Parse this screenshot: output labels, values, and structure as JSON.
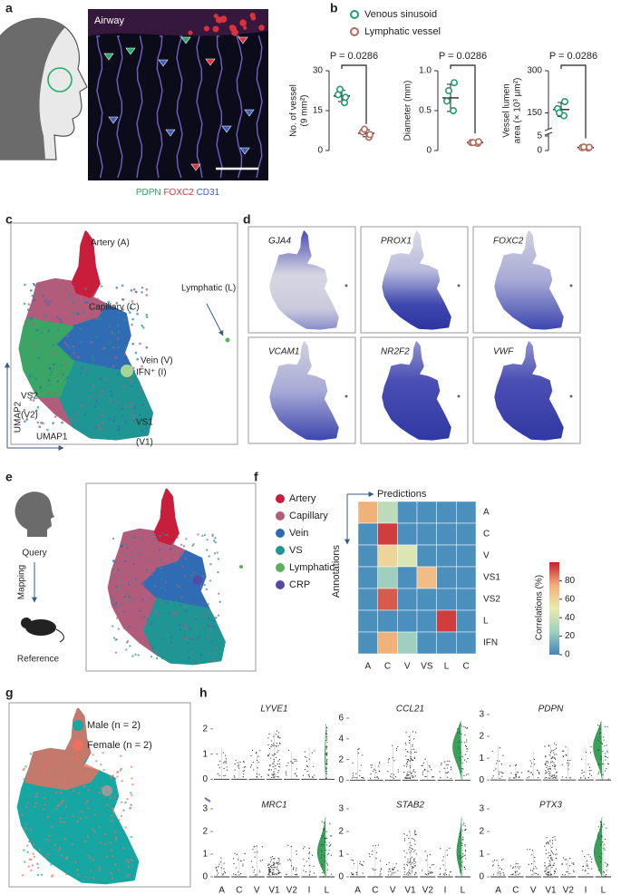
{
  "panels": {
    "a": {
      "letter": "a",
      "label": "Airway",
      "stains": [
        {
          "name": "PDPN",
          "color": "#23a35f"
        },
        {
          "name": "FOXC2",
          "color": "#e0303c"
        },
        {
          "name": "CD31",
          "color": "#3a5fc0"
        }
      ]
    },
    "b": {
      "letter": "b"
    },
    "c": {
      "letter": "c",
      "labels": [
        "Artery (A)",
        "Capillary (C)",
        "Lymphatic (L)",
        "Vein (V)",
        "IFN⁺ (I)",
        "VS2",
        "(V2)",
        "VS1",
        "(V1)"
      ],
      "x_label": "UMAP1",
      "y_label": "UMAP2"
    },
    "d": {
      "letter": "d",
      "genes": [
        "GJA4",
        "PROX1",
        "FOXC2",
        "VCAM1",
        "NR2F2",
        "VWF"
      ]
    },
    "e": {
      "letter": "e",
      "query": "Query",
      "mapping": "Mapping",
      "reference": "Reference",
      "legend": [
        {
          "name": "Artery",
          "color": "#c81e3c"
        },
        {
          "name": "Capillary",
          "color": "#b25c7c"
        },
        {
          "name": "Vein",
          "color": "#2f6cb4"
        },
        {
          "name": "VS",
          "color": "#1f9693"
        },
        {
          "name": "Lymphatic",
          "color": "#5fb05c"
        },
        {
          "name": "CRP",
          "color": "#5a48a6"
        }
      ]
    },
    "f": {
      "letter": "f"
    },
    "g": {
      "letter": "g",
      "legend": [
        {
          "name": "Male (n = 2)",
          "color": "#17a6a2"
        },
        {
          "name": "Female (n = 2)",
          "color": "#ee6f5e"
        }
      ]
    },
    "h": {
      "letter": "h"
    }
  },
  "chart_data": [
    {
      "type": "dot",
      "ylabel": [
        "No. of vessel",
        "(9 mm²)"
      ],
      "annotation": "P = 0.0286",
      "ylim": [
        0,
        30
      ],
      "yticks": [
        0,
        15,
        30
      ],
      "series": [
        {
          "name": "Venous sinusoid",
          "color": "#1f9e6d",
          "values": [
            21,
            18,
            23,
            20
          ],
          "mean": 20.5,
          "error": 2.1
        },
        {
          "name": "Lymphatic vessel",
          "color": "#b06a5e",
          "values": [
            7,
            5,
            8,
            6
          ],
          "mean": 6.5,
          "error": 1.3
        }
      ]
    },
    {
      "type": "dot",
      "ylabel": [
        "Diameter (mm)"
      ],
      "annotation": "P = 0.0286",
      "ylim": [
        0,
        1
      ],
      "yticks": [
        0,
        0.5,
        {
          "value": 1,
          "label": "1.0"
        }
      ],
      "series": [
        {
          "color": "#1f9e6d",
          "values": [
            0.62,
            0.5,
            0.75,
            0.85
          ],
          "mean": 0.66,
          "error": 0.17
        },
        {
          "color": "#b06a5e",
          "values": [
            0.1,
            0.09,
            0.1,
            0.11
          ],
          "mean": 0.1,
          "error": 0.01
        }
      ]
    },
    {
      "type": "dot",
      "ylabel": [
        "Vessel lumen",
        "area (× 10³ µm²)"
      ],
      "annotation": "P = 0.0286",
      "ylim": [
        0,
        300
      ],
      "axis_break": [
        5,
        100
      ],
      "yticks": [
        0,
        5,
        150,
        300
      ],
      "series": [
        {
          "color": "#1f9e6d",
          "values": [
            165,
            140,
            150,
            190
          ],
          "mean": 162,
          "error": 25
        },
        {
          "color": "#b06a5e",
          "values": [
            1,
            0.9,
            1.2,
            1.1
          ],
          "mean": 1.05,
          "error": 0.1
        }
      ]
    },
    {
      "type": "heatmap",
      "x_label": "Predictions",
      "y_label": "Annotations",
      "columns": [
        "A",
        "C",
        "V",
        "VS",
        "L",
        "C"
      ],
      "rows": [
        "A",
        "C",
        "V",
        "VS1",
        "VS2",
        "L",
        "IFN"
      ],
      "values": [
        [
          75,
          35,
          3,
          3,
          3,
          3
        ],
        [
          3,
          95,
          3,
          3,
          3,
          3
        ],
        [
          3,
          60,
          45,
          3,
          3,
          3
        ],
        [
          3,
          25,
          3,
          70,
          3,
          3
        ],
        [
          3,
          90,
          3,
          3,
          3,
          3
        ],
        [
          3,
          3,
          3,
          3,
          95,
          3
        ],
        [
          3,
          75,
          25,
          3,
          3,
          3
        ]
      ],
      "clim": [
        0,
        100
      ],
      "colorbar_ticks": [
        0,
        20,
        40,
        60,
        80
      ],
      "colorbar_label": "Correlations (%)",
      "colors": [
        "#3f86bd",
        "#9fd0bd",
        "#e9ebb0",
        "#f0b27a",
        "#c8202e"
      ]
    },
    {
      "type": "violin",
      "title": "LYVE1",
      "ylim": [
        -0.2,
        3
      ],
      "yticks": [
        0,
        1,
        2
      ],
      "color": "#3aa05a"
    },
    {
      "type": "violin",
      "title": "CCL21",
      "ylim": [
        -0.4,
        7.4
      ],
      "yticks": [
        0,
        2,
        4,
        6
      ],
      "color": "#3aa05a"
    },
    {
      "type": "violin",
      "title": "PDPN",
      "ylim": [
        -0.2,
        3.5
      ],
      "yticks": [
        0,
        1,
        2,
        3
      ],
      "color": "#3aa05a"
    },
    {
      "type": "violin",
      "title": "MRC1",
      "ylim": [
        -0.2,
        3.4
      ],
      "yticks": [
        0,
        1,
        2,
        3
      ],
      "color": "#3aa05a",
      "categories": [
        "A",
        "C",
        "V",
        "V1",
        "V2",
        "I",
        "L"
      ]
    },
    {
      "type": "violin",
      "title": "STAB2",
      "ylim": [
        -0.2,
        3.4
      ],
      "yticks": [
        0,
        1,
        2,
        3
      ],
      "color": "#3aa05a",
      "categories": [
        "A",
        "C",
        "V",
        "V1",
        "V2",
        "I",
        "L"
      ]
    },
    {
      "type": "violin",
      "title": "PTX3",
      "ylim": [
        -0.2,
        3.4
      ],
      "yticks": [
        0,
        1,
        2,
        3
      ],
      "color": "#3aa05a",
      "categories": [
        "A",
        "C",
        "V",
        "V1",
        "V2",
        "I",
        "L"
      ]
    }
  ]
}
